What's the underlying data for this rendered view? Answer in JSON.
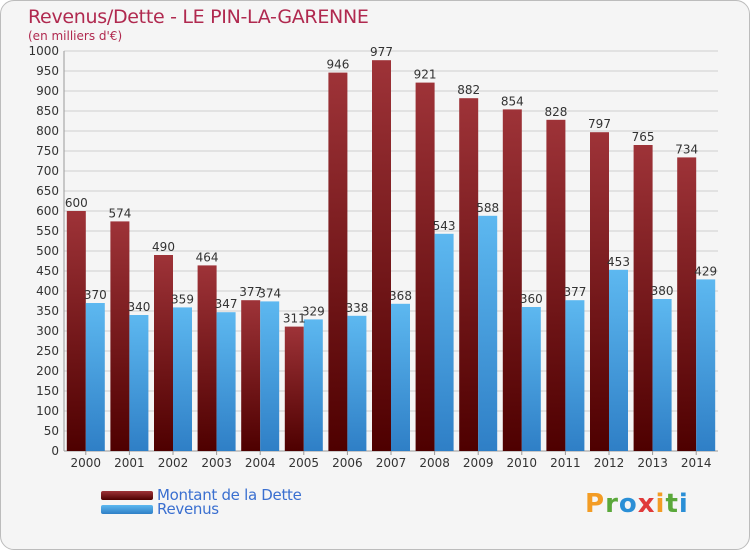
{
  "header": {
    "title": "Revenus/Dette - LE PIN-LA-GARENNE",
    "subtitle": "(en milliers d'€)"
  },
  "legend": {
    "debt_label": "Montant de la Dette",
    "revenue_label": "Revenus"
  },
  "logo": {
    "letters": [
      "P",
      "r",
      "o",
      "x",
      "i",
      "t",
      "i"
    ],
    "colors": [
      "#f39c24",
      "#5aa83a",
      "#2a8fd6",
      "#e03a3a",
      "#f39c24",
      "#5aa83a",
      "#2a8fd6"
    ]
  },
  "colors": {
    "debt_top": "#9e3338",
    "debt_bottom": "#4e0000",
    "revenue_top": "#5db8f0",
    "revenue_bottom": "#2f7fc6",
    "grid": "#cfcfcf",
    "axis_text": "#333333",
    "label_text": "#333333"
  },
  "chart_data": {
    "type": "bar",
    "title": "Revenus/Dette - LE PIN-LA-GARENNE",
    "ylabel": "(en milliers d'€)",
    "xlabel": "",
    "ylim": [
      0,
      1000
    ],
    "ytick_step": 50,
    "yticks": [
      "0",
      "50",
      "100",
      "150",
      "200",
      "250",
      "300",
      "350",
      "400",
      "450",
      "500",
      "550",
      "600",
      "650",
      "700",
      "750",
      "800",
      "850",
      "900",
      "950",
      "1000"
    ],
    "categories": [
      "2000",
      "2001",
      "2002",
      "2003",
      "2004",
      "2005",
      "2006",
      "2007",
      "2008",
      "2009",
      "2010",
      "2011",
      "2012",
      "2013",
      "2014"
    ],
    "series": [
      {
        "name": "Montant de la Dette",
        "values": [
          600,
          574,
          490,
          464,
          377,
          311,
          946,
          977,
          921,
          882,
          854,
          828,
          797,
          765,
          734
        ],
        "labels": [
          "600",
          "574",
          "490",
          "464",
          "377",
          "311",
          "946",
          "977",
          "921",
          "882",
          "854",
          "828",
          "797",
          "765",
          "734"
        ]
      },
      {
        "name": "Revenus",
        "values": [
          370,
          340,
          359,
          347,
          374,
          329,
          338,
          368,
          543,
          588,
          360,
          377,
          453,
          380,
          429
        ],
        "labels": [
          "370",
          "340",
          "359",
          "347",
          "374",
          "329",
          "338",
          "368",
          "543",
          "588",
          "360",
          "377",
          "453",
          "380",
          "429"
        ]
      }
    ],
    "grid": true,
    "legend_position": "bottom-left"
  }
}
